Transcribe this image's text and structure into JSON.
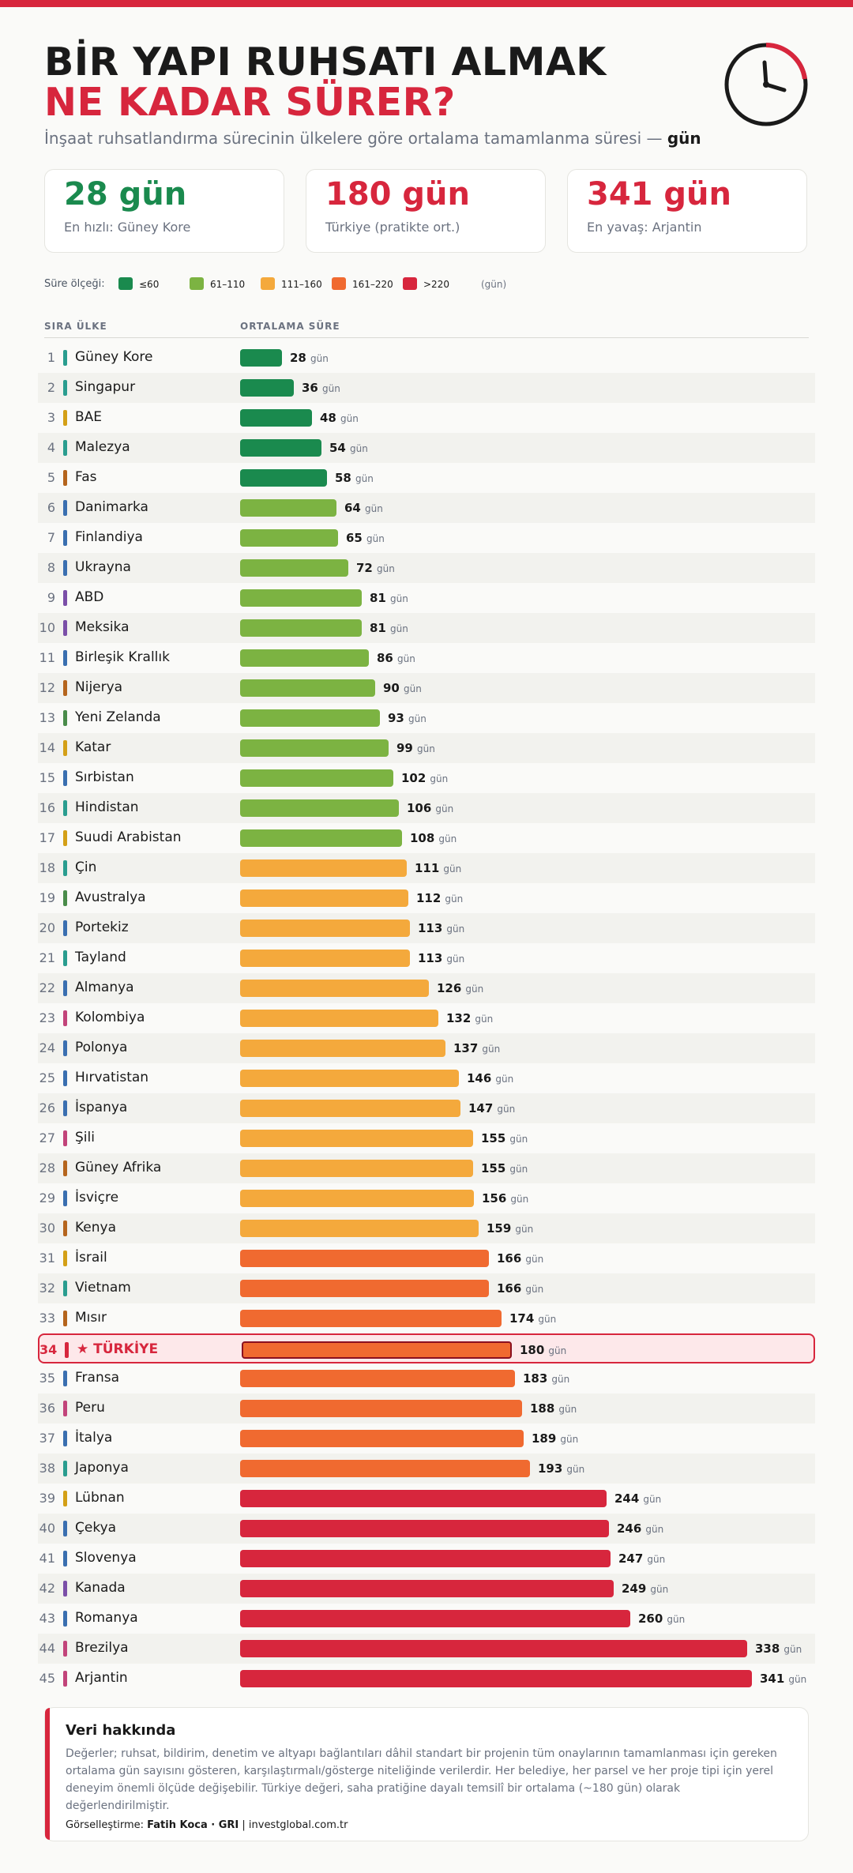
{
  "header": {
    "title_line1": "BİR YAPI RUHSATI ALMAK",
    "title_line2": "NE KADAR SÜRER?",
    "subtitle_text": "İnşaat ruhsatlandırma sürecinin ülkelere göre ortalama tamamlanma süresi — ",
    "subtitle_unit": "gün",
    "icon": "clock-icon"
  },
  "cards": [
    {
      "value": "28 gün",
      "caption": "En hızlı: Güney Kore",
      "color": "#1a8a4e"
    },
    {
      "value": "180 gün",
      "caption": "Türkiye (pratikte ort.)",
      "color": "#d7263d"
    },
    {
      "value": "341 gün",
      "caption": "En yavaş: Arjantin",
      "color": "#d7263d"
    }
  ],
  "legend": {
    "label": "Süre ölçeği:",
    "items": [
      {
        "label": "≤60",
        "color": "#1a8a4e"
      },
      {
        "label": "61–110",
        "color": "#7cb342"
      },
      {
        "label": "111–160",
        "color": "#f4a93c"
      },
      {
        "label": "161–220",
        "color": "#f06a30"
      },
      {
        "label": ">220",
        "color": "#d7263d"
      }
    ],
    "unit": "(gün)"
  },
  "columns": {
    "rank_country": "SIRA ÜLKE",
    "duration": "ORTALAMA SÜRE"
  },
  "value_unit": "gün",
  "chart_data": {
    "type": "bar",
    "orientation": "horizontal",
    "xlim": [
      0,
      341
    ],
    "highlight_rank": 34,
    "rows": [
      {
        "rank": 1,
        "country": "Güney Kore",
        "value": 28,
        "tick": "#2a9d8f"
      },
      {
        "rank": 2,
        "country": "Singapur",
        "value": 36,
        "tick": "#2a9d8f"
      },
      {
        "rank": 3,
        "country": "BAE",
        "value": 48,
        "tick": "#d4a017"
      },
      {
        "rank": 4,
        "country": "Malezya",
        "value": 54,
        "tick": "#2a9d8f"
      },
      {
        "rank": 5,
        "country": "Fas",
        "value": 58,
        "tick": "#b5651d"
      },
      {
        "rank": 6,
        "country": "Danimarka",
        "value": 64,
        "tick": "#3a6fb0"
      },
      {
        "rank": 7,
        "country": "Finlandiya",
        "value": 65,
        "tick": "#3a6fb0"
      },
      {
        "rank": 8,
        "country": "Ukrayna",
        "value": 72,
        "tick": "#3a6fb0"
      },
      {
        "rank": 9,
        "country": "ABD",
        "value": 81,
        "tick": "#7b4fa8"
      },
      {
        "rank": 10,
        "country": "Meksika",
        "value": 81,
        "tick": "#7b4fa8"
      },
      {
        "rank": 11,
        "country": "Birleşik Krallık",
        "value": 86,
        "tick": "#3a6fb0"
      },
      {
        "rank": 12,
        "country": "Nijerya",
        "value": 90,
        "tick": "#b5651d"
      },
      {
        "rank": 13,
        "country": "Yeni Zelanda",
        "value": 93,
        "tick": "#4a8c4a"
      },
      {
        "rank": 14,
        "country": "Katar",
        "value": 99,
        "tick": "#d4a017"
      },
      {
        "rank": 15,
        "country": "Sırbistan",
        "value": 102,
        "tick": "#3a6fb0"
      },
      {
        "rank": 16,
        "country": "Hindistan",
        "value": 106,
        "tick": "#2a9d8f"
      },
      {
        "rank": 17,
        "country": "Suudi Arabistan",
        "value": 108,
        "tick": "#d4a017"
      },
      {
        "rank": 18,
        "country": "Çin",
        "value": 111,
        "tick": "#2a9d8f"
      },
      {
        "rank": 19,
        "country": "Avustralya",
        "value": 112,
        "tick": "#4a8c4a"
      },
      {
        "rank": 20,
        "country": "Portekiz",
        "value": 113,
        "tick": "#3a6fb0"
      },
      {
        "rank": 21,
        "country": "Tayland",
        "value": 113,
        "tick": "#2a9d8f"
      },
      {
        "rank": 22,
        "country": "Almanya",
        "value": 126,
        "tick": "#3a6fb0"
      },
      {
        "rank": 23,
        "country": "Kolombiya",
        "value": 132,
        "tick": "#c2447a"
      },
      {
        "rank": 24,
        "country": "Polonya",
        "value": 137,
        "tick": "#3a6fb0"
      },
      {
        "rank": 25,
        "country": "Hırvatistan",
        "value": 146,
        "tick": "#3a6fb0"
      },
      {
        "rank": 26,
        "country": "İspanya",
        "value": 147,
        "tick": "#3a6fb0"
      },
      {
        "rank": 27,
        "country": "Şili",
        "value": 155,
        "tick": "#c2447a"
      },
      {
        "rank": 28,
        "country": "Güney Afrika",
        "value": 155,
        "tick": "#b5651d"
      },
      {
        "rank": 29,
        "country": "İsviçre",
        "value": 156,
        "tick": "#3a6fb0"
      },
      {
        "rank": 30,
        "country": "Kenya",
        "value": 159,
        "tick": "#b5651d"
      },
      {
        "rank": 31,
        "country": "İsrail",
        "value": 166,
        "tick": "#d4a017"
      },
      {
        "rank": 32,
        "country": "Vietnam",
        "value": 166,
        "tick": "#2a9d8f"
      },
      {
        "rank": 33,
        "country": "Mısır",
        "value": 174,
        "tick": "#b5651d"
      },
      {
        "rank": 34,
        "country": "★ TÜRKİYE",
        "value": 180,
        "tick": "#d7263d"
      },
      {
        "rank": 35,
        "country": "Fransa",
        "value": 183,
        "tick": "#3a6fb0"
      },
      {
        "rank": 36,
        "country": "Peru",
        "value": 188,
        "tick": "#c2447a"
      },
      {
        "rank": 37,
        "country": "İtalya",
        "value": 189,
        "tick": "#3a6fb0"
      },
      {
        "rank": 38,
        "country": "Japonya",
        "value": 193,
        "tick": "#2a9d8f"
      },
      {
        "rank": 39,
        "country": "Lübnan",
        "value": 244,
        "tick": "#d4a017"
      },
      {
        "rank": 40,
        "country": "Çekya",
        "value": 246,
        "tick": "#3a6fb0"
      },
      {
        "rank": 41,
        "country": "Slovenya",
        "value": 247,
        "tick": "#3a6fb0"
      },
      {
        "rank": 42,
        "country": "Kanada",
        "value": 249,
        "tick": "#7b4fa8"
      },
      {
        "rank": 43,
        "country": "Romanya",
        "value": 260,
        "tick": "#3a6fb0"
      },
      {
        "rank": 44,
        "country": "Brezilya",
        "value": 338,
        "tick": "#c2447a"
      },
      {
        "rank": 45,
        "country": "Arjantin",
        "value": 341,
        "tick": "#c2447a"
      }
    ]
  },
  "note": {
    "title": "Veri hakkında",
    "body": "Değerler; ruhsat, bildirim, denetim ve altyapı bağlantıları dâhil standart bir projenin tüm onaylarının tamamlanması için gereken ortalama gün sayısını gösteren, karşılaştırmalı/gösterge niteliğinde verilerdir. Her belediye, her parsel ve her proje tipi için yerel deneyim önemli ölçüde değişebilir. Türkiye değeri, saha pratiğine dayalı temsilî bir ortalama (~180 gün) olarak değerlendirilmiştir.",
    "credit_prefix": "Görselleştirme: ",
    "credit_author": "Fatih Koca · GRI",
    "credit_suffix": " | investglobal.com.tr"
  }
}
